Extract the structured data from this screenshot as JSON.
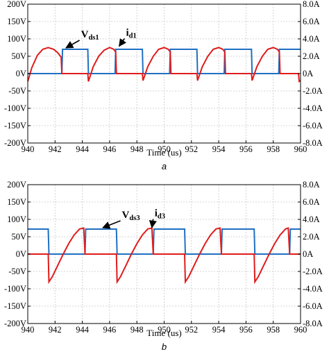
{
  "chart_data": [
    {
      "type": "line",
      "panel_label": "a",
      "xlabel": "Time (us)",
      "xlim": [
        940,
        960
      ],
      "x_ticks": [
        "940",
        "942",
        "944",
        "946",
        "948",
        "950",
        "952",
        "954",
        "956",
        "958",
        "960"
      ],
      "ylim_left": [
        -200,
        200
      ],
      "y_ticks_left": [
        "200V",
        "150V",
        "100V",
        "50V",
        "0V",
        "-50V",
        "-100V",
        "-150V",
        "-200V"
      ],
      "ylim_right": [
        -8,
        8
      ],
      "y_ticks_right": [
        "8.0A",
        "6.0A",
        "4.0A",
        "2.0A",
        "0A",
        "-2.0A",
        "-4.0A",
        "-6.0A",
        "-8.0A"
      ],
      "grid": true,
      "series": [
        {
          "name": "Vds1",
          "axis": "left",
          "color": "#1f6fc2",
          "points": [
            [
              940,
              0
            ],
            [
              942.5,
              0
            ],
            [
              942.55,
              70
            ],
            [
              944.4,
              70
            ],
            [
              944.45,
              0
            ],
            [
              946.4,
              0
            ],
            [
              946.45,
              70
            ],
            [
              948.4,
              70
            ],
            [
              948.45,
              0
            ],
            [
              950.4,
              0
            ],
            [
              950.45,
              70
            ],
            [
              952.4,
              70
            ],
            [
              952.45,
              0
            ],
            [
              954.4,
              0
            ],
            [
              954.45,
              70
            ],
            [
              956.4,
              70
            ],
            [
              956.45,
              0
            ],
            [
              958.4,
              0
            ],
            [
              958.45,
              70
            ],
            [
              960,
              70
            ]
          ]
        },
        {
          "name": "id1",
          "axis": "right",
          "color": "#e01b1b",
          "points": [
            [
              940,
              -0.9
            ],
            [
              940.3,
              0.7
            ],
            [
              940.7,
              2.1
            ],
            [
              941.1,
              2.8
            ],
            [
              941.5,
              3.0
            ],
            [
              941.9,
              2.8
            ],
            [
              942.2,
              2.4
            ],
            [
              942.45,
              1.9
            ],
            [
              942.5,
              0
            ],
            [
              944.4,
              0
            ],
            [
              944.45,
              -0.9
            ],
            [
              944.8,
              0.8
            ],
            [
              945.2,
              2.0
            ],
            [
              945.6,
              2.7
            ],
            [
              946.0,
              3.0
            ],
            [
              946.3,
              2.8
            ],
            [
              946.45,
              2.5
            ],
            [
              946.5,
              0
            ],
            [
              948.4,
              0
            ],
            [
              948.45,
              -0.8
            ],
            [
              948.8,
              0.8
            ],
            [
              949.2,
              2.0
            ],
            [
              949.6,
              2.8
            ],
            [
              950.0,
              3.0
            ],
            [
              950.3,
              2.8
            ],
            [
              950.45,
              2.5
            ],
            [
              950.5,
              0
            ],
            [
              952.4,
              0
            ],
            [
              952.45,
              -0.8
            ],
            [
              952.8,
              0.8
            ],
            [
              953.2,
              2.0
            ],
            [
              953.6,
              2.8
            ],
            [
              954.0,
              3.0
            ],
            [
              954.3,
              2.8
            ],
            [
              954.45,
              2.5
            ],
            [
              954.5,
              0
            ],
            [
              956.4,
              0
            ],
            [
              956.45,
              -0.8
            ],
            [
              956.8,
              0.8
            ],
            [
              957.2,
              2.0
            ],
            [
              957.6,
              2.8
            ],
            [
              958.0,
              3.0
            ],
            [
              958.3,
              2.8
            ],
            [
              958.45,
              2.5
            ],
            [
              958.5,
              0
            ],
            [
              959.85,
              0
            ],
            [
              959.9,
              -0.9
            ],
            [
              960,
              -0.8
            ]
          ]
        }
      ],
      "annotations": [
        {
          "base": "V",
          "sub": "ds1",
          "target_series": "Vds1",
          "target": [
            942.7,
            70
          ],
          "label_at": [
            944.0,
            100
          ]
        },
        {
          "base": "i",
          "sub": "d1",
          "target_series": "id1",
          "target": [
            946.6,
            3.0
          ],
          "label_at": [
            947.3,
            4.2
          ]
        }
      ]
    },
    {
      "type": "line",
      "panel_label": "b",
      "xlabel": "Time (us)",
      "xlim": [
        940,
        960
      ],
      "x_ticks": [
        "940",
        "942",
        "944",
        "946",
        "948",
        "950",
        "952",
        "954",
        "956",
        "958",
        "960"
      ],
      "ylim_left": [
        -200,
        200
      ],
      "y_ticks_left": [
        "200V",
        "150V",
        "100V",
        "50V",
        "0V",
        "-50V",
        "-100V",
        "-150V",
        "-200V"
      ],
      "ylim_right": [
        -8,
        8
      ],
      "y_ticks_right": [
        "8.0A",
        "6.0A",
        "4.0A",
        "2.0A",
        "0A",
        "-2.0A",
        "-4.0A",
        "-6.0A",
        "-8.0A"
      ],
      "grid": true,
      "series": [
        {
          "name": "Vds3",
          "axis": "left",
          "color": "#1f6fc2",
          "points": [
            [
              940,
              72
            ],
            [
              941.5,
              72
            ],
            [
              941.55,
              0
            ],
            [
              944.2,
              0
            ],
            [
              944.25,
              72
            ],
            [
              946.5,
              72
            ],
            [
              946.55,
              0
            ],
            [
              949.2,
              0
            ],
            [
              949.25,
              72
            ],
            [
              951.5,
              72
            ],
            [
              951.55,
              0
            ],
            [
              954.2,
              0
            ],
            [
              954.25,
              72
            ],
            [
              956.6,
              72
            ],
            [
              956.65,
              0
            ],
            [
              959.2,
              0
            ],
            [
              959.25,
              72
            ],
            [
              960,
              72
            ]
          ]
        },
        {
          "name": "id3",
          "axis": "right",
          "color": "#e01b1b",
          "points": [
            [
              940,
              0
            ],
            [
              941.5,
              0
            ],
            [
              941.55,
              -3.2
            ],
            [
              941.8,
              -2.6
            ],
            [
              942.2,
              -1.3
            ],
            [
              942.6,
              0
            ],
            [
              943.0,
              1.2
            ],
            [
              943.4,
              2.2
            ],
            [
              943.8,
              2.9
            ],
            [
              944.1,
              3.0
            ],
            [
              944.2,
              0
            ],
            [
              946.5,
              0
            ],
            [
              946.55,
              -3.2
            ],
            [
              946.8,
              -2.6
            ],
            [
              947.2,
              -1.3
            ],
            [
              947.6,
              0
            ],
            [
              948.0,
              1.2
            ],
            [
              948.4,
              2.2
            ],
            [
              948.8,
              2.9
            ],
            [
              949.1,
              3.0
            ],
            [
              949.2,
              0
            ],
            [
              951.5,
              0
            ],
            [
              951.55,
              -3.2
            ],
            [
              951.8,
              -2.6
            ],
            [
              952.2,
              -1.3
            ],
            [
              952.6,
              0
            ],
            [
              953.0,
              1.2
            ],
            [
              953.4,
              2.2
            ],
            [
              953.8,
              2.9
            ],
            [
              954.1,
              3.0
            ],
            [
              954.2,
              0
            ],
            [
              956.6,
              0
            ],
            [
              956.65,
              -3.2
            ],
            [
              956.9,
              -2.6
            ],
            [
              957.3,
              -1.3
            ],
            [
              957.7,
              0
            ],
            [
              958.1,
              1.2
            ],
            [
              958.5,
              2.2
            ],
            [
              958.9,
              2.9
            ],
            [
              959.1,
              3.0
            ],
            [
              959.2,
              0
            ],
            [
              960,
              0
            ]
          ]
        }
      ],
      "annotations": [
        {
          "base": "V",
          "sub": "ds3",
          "target_series": "Vds3",
          "target": [
            945.4,
            72
          ],
          "label_at": [
            947.0,
            100
          ]
        },
        {
          "base": "i",
          "sub": "d3",
          "target_series": "id3",
          "target": [
            949.0,
            2.9
          ],
          "label_at": [
            949.4,
            4.2
          ]
        }
      ]
    }
  ]
}
